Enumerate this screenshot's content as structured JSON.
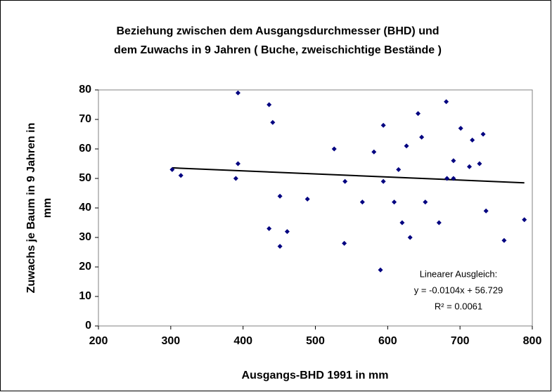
{
  "chart_data": {
    "type": "scatter",
    "title": [
      "Beziehung zwischen dem Ausgangsdurchmesser (BHD) und",
      "dem Zuwachs in 9 Jahren ( Buche, zweischichtige Bestände )"
    ],
    "x_label": "Ausgangs-BHD 1991 in mm",
    "y_label": [
      "Zuwachs je Baum in 9 Jahren in",
      "mm"
    ],
    "annotation": [
      "Linearer Ausgleich:",
      "y = -0.0104x + 56.729",
      "R² = 0.0061"
    ],
    "trendline": {
      "slope": -0.0104,
      "intercept": 56.729
    },
    "color": "#000080",
    "x": [
      302,
      314,
      393,
      393,
      390,
      436,
      441,
      436,
      451,
      461,
      451,
      489,
      526,
      540,
      541,
      565,
      581,
      594,
      594,
      590,
      609,
      615,
      620,
      626,
      631,
      642,
      647,
      652,
      671,
      681,
      682,
      691,
      691,
      701,
      713,
      717,
      727,
      732,
      736,
      761,
      789
    ],
    "values": [
      53,
      51,
      79,
      55,
      50,
      75,
      69,
      33,
      44,
      32,
      27,
      43,
      60,
      28,
      49,
      42,
      59,
      68,
      49,
      19,
      42,
      53,
      35,
      61,
      30,
      72,
      64,
      42,
      35,
      76,
      50,
      56,
      50,
      67,
      54,
      63,
      55,
      65,
      39,
      29,
      36
    ],
    "xlim": [
      200,
      800
    ],
    "xticks": [
      200,
      300,
      400,
      500,
      600,
      700,
      800
    ],
    "ylim": [
      0,
      80
    ],
    "yticks": [
      0,
      10,
      20,
      30,
      40,
      50,
      60,
      70,
      80
    ]
  }
}
